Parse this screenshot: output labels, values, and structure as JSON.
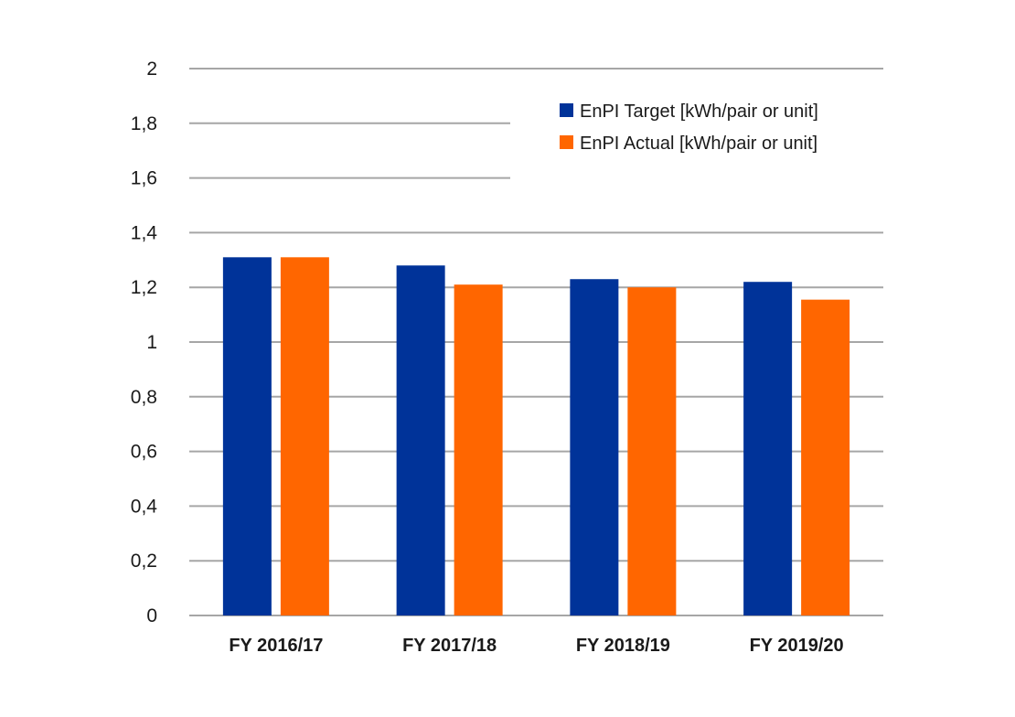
{
  "chart_data": {
    "type": "bar",
    "categories": [
      "FY 2016/17",
      "FY 2017/18",
      "FY 2018/19",
      "FY 2019/20"
    ],
    "series": [
      {
        "name": "EnPI Target [kWh/pair or unit]",
        "color": "#003399",
        "values": [
          1.31,
          1.28,
          1.23,
          1.22
        ]
      },
      {
        "name": "EnPI Actual [kWh/pair or unit]",
        "color": "#ff6600",
        "values": [
          1.31,
          1.21,
          1.2,
          1.155
        ]
      }
    ],
    "yticks": [
      "0",
      "0,2",
      "0,4",
      "0,6",
      "0,8",
      "1",
      "1,2",
      "1,4",
      "1,6",
      "1,8",
      "2"
    ],
    "ylim": [
      0,
      2
    ],
    "grid": true,
    "legend_position": "top-right"
  }
}
